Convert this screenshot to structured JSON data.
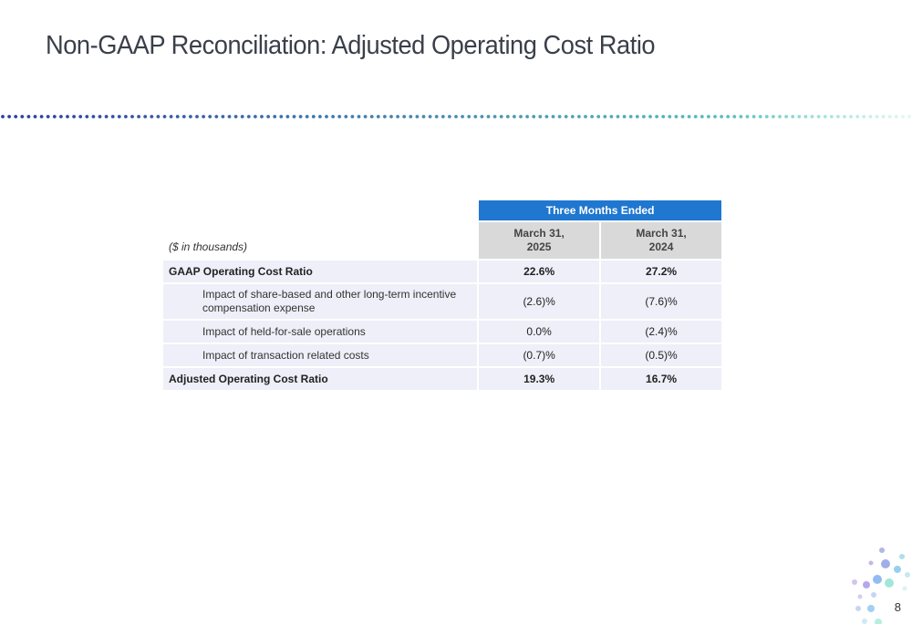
{
  "slide": {
    "title": "Non-GAAP Reconciliation: Adjusted Operating Cost Ratio",
    "page_number": "8"
  },
  "table": {
    "group_header": "Three Months Ended",
    "units_label": "($ in thousands)",
    "columns": [
      {
        "line1": "March 31,",
        "line2": "2025"
      },
      {
        "line1": "March 31,",
        "line2": "2024"
      }
    ],
    "rows": [
      {
        "label": "GAAP Operating Cost Ratio",
        "values": [
          "22.6%",
          "27.2%"
        ],
        "style": "main"
      },
      {
        "label": "Impact of share-based and other long-term incentive compensation expense",
        "values": [
          "(2.6)%",
          "(7.6)%"
        ],
        "style": "sub"
      },
      {
        "label": "Impact of held-for-sale operations",
        "values": [
          "0.0%",
          "(2.4)%"
        ],
        "style": "sub"
      },
      {
        "label": "Impact of transaction related costs",
        "values": [
          "(0.7)%",
          "(0.5)%"
        ],
        "style": "sub"
      },
      {
        "label": "Adjusted Operating Cost Ratio",
        "values": [
          "19.3%",
          "16.7%"
        ],
        "style": "main"
      }
    ]
  },
  "colors": {
    "header_blue": "#1f77d0",
    "header_gray": "#d9d9d9",
    "row_fill": "#eeeff8",
    "dot_start": "#2b3f9e",
    "dot_end": "#5fd0c0"
  },
  "icons": {
    "divider": "dotted-gradient-line",
    "corner_decoration": "dot-cluster"
  }
}
